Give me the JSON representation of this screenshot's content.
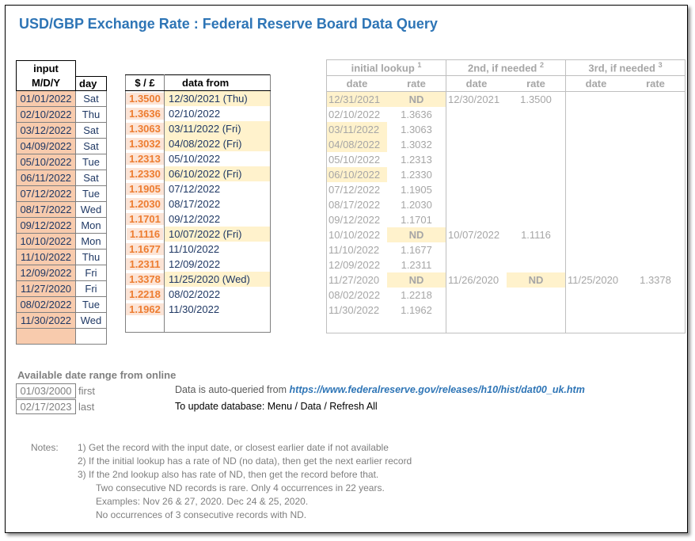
{
  "title": "USD/GBP Exchange Rate : Federal Reserve Board Data Query",
  "input_table": {
    "header_input": "input",
    "header_mdy": "M/D/Y",
    "header_day": "day",
    "rows": [
      {
        "date": "01/01/2022",
        "day": "Sat"
      },
      {
        "date": "02/10/2022",
        "day": "Thu"
      },
      {
        "date": "03/12/2022",
        "day": "Sat"
      },
      {
        "date": "04/09/2022",
        "day": "Sat"
      },
      {
        "date": "05/10/2022",
        "day": "Tue"
      },
      {
        "date": "06/11/2022",
        "day": "Sat"
      },
      {
        "date": "07/12/2022",
        "day": "Tue"
      },
      {
        "date": "08/17/2022",
        "day": "Wed"
      },
      {
        "date": "09/12/2022",
        "day": "Mon"
      },
      {
        "date": "10/10/2022",
        "day": "Mon"
      },
      {
        "date": "11/10/2022",
        "day": "Thu"
      },
      {
        "date": "12/09/2022",
        "day": "Fri"
      },
      {
        "date": "11/27/2020",
        "day": "Fri"
      },
      {
        "date": "08/02/2022",
        "day": "Tue"
      },
      {
        "date": "11/30/2022",
        "day": "Wed"
      }
    ]
  },
  "rate_table": {
    "header_rate": "$ / £",
    "header_from": "data from",
    "rows": [
      {
        "rate": "1.3500",
        "from": "12/30/2021 (Thu)",
        "hl": true
      },
      {
        "rate": "1.3636",
        "from": "02/10/2022",
        "hl": false
      },
      {
        "rate": "1.3063",
        "from": "03/11/2022 (Fri)",
        "hl": true
      },
      {
        "rate": "1.3032",
        "from": "04/08/2022 (Fri)",
        "hl": true
      },
      {
        "rate": "1.2313",
        "from": "05/10/2022",
        "hl": false
      },
      {
        "rate": "1.2330",
        "from": "06/10/2022 (Fri)",
        "hl": true
      },
      {
        "rate": "1.1905",
        "from": "07/12/2022",
        "hl": false
      },
      {
        "rate": "1.2030",
        "from": "08/17/2022",
        "hl": false
      },
      {
        "rate": "1.1701",
        "from": "09/12/2022",
        "hl": false
      },
      {
        "rate": "1.1116",
        "from": "10/07/2022 (Fri)",
        "hl": true
      },
      {
        "rate": "1.1677",
        "from": "11/10/2022",
        "hl": false
      },
      {
        "rate": "1.2311",
        "from": "12/09/2022",
        "hl": false
      },
      {
        "rate": "1.3378",
        "from": "11/25/2020 (Wed)",
        "hl": true
      },
      {
        "rate": "1.2218",
        "from": "08/02/2022",
        "hl": false
      },
      {
        "rate": "1.1962",
        "from": "11/30/2022",
        "hl": false
      }
    ]
  },
  "lookup_table": {
    "h_initial": "initial lookup",
    "h_initial_sup": "1",
    "h_second": "2nd, if needed",
    "h_second_sup": "2",
    "h_third": "3rd, if needed",
    "h_third_sup": "3",
    "h_date": "date",
    "h_rate": "rate",
    "rows": [
      {
        "d1": "12/31/2021",
        "r1": "ND",
        "d2": "12/30/2021",
        "r2": "1.3500",
        "d3": "",
        "r3": ""
      },
      {
        "d1": "02/10/2022",
        "r1": "1.3636",
        "d2": "",
        "r2": "",
        "d3": "",
        "r3": ""
      },
      {
        "d1": "03/11/2022",
        "r1": "1.3063",
        "d2": "",
        "r2": "",
        "d3": "",
        "r3": ""
      },
      {
        "d1": "04/08/2022",
        "r1": "1.3032",
        "d2": "",
        "r2": "",
        "d3": "",
        "r3": ""
      },
      {
        "d1": "05/10/2022",
        "r1": "1.2313",
        "d2": "",
        "r2": "",
        "d3": "",
        "r3": ""
      },
      {
        "d1": "06/10/2022",
        "r1": "1.2330",
        "d2": "",
        "r2": "",
        "d3": "",
        "r3": ""
      },
      {
        "d1": "07/12/2022",
        "r1": "1.1905",
        "d2": "",
        "r2": "",
        "d3": "",
        "r3": ""
      },
      {
        "d1": "08/17/2022",
        "r1": "1.2030",
        "d2": "",
        "r2": "",
        "d3": "",
        "r3": ""
      },
      {
        "d1": "09/12/2022",
        "r1": "1.1701",
        "d2": "",
        "r2": "",
        "d3": "",
        "r3": ""
      },
      {
        "d1": "10/10/2022",
        "r1": "ND",
        "d2": "10/07/2022",
        "r2": "1.1116",
        "d3": "",
        "r3": ""
      },
      {
        "d1": "11/10/2022",
        "r1": "1.1677",
        "d2": "",
        "r2": "",
        "d3": "",
        "r3": ""
      },
      {
        "d1": "12/09/2022",
        "r1": "1.2311",
        "d2": "",
        "r2": "",
        "d3": "",
        "r3": ""
      },
      {
        "d1": "11/27/2020",
        "r1": "ND",
        "d2": "11/26/2020",
        "r2": "ND",
        "d3": "11/25/2020",
        "r3": "1.3378"
      },
      {
        "d1": "08/02/2022",
        "r1": "1.2218",
        "d2": "",
        "r2": "",
        "d3": "",
        "r3": ""
      },
      {
        "d1": "11/30/2022",
        "r1": "1.1962",
        "d2": "",
        "r2": "",
        "d3": "",
        "r3": ""
      }
    ],
    "highlighted_rows": [
      0,
      2,
      3,
      5
    ]
  },
  "available": {
    "title": "Available date range from online",
    "first_date": "01/03/2000",
    "first_label": "first",
    "last_date": "02/17/2023",
    "last_label": "last"
  },
  "info": {
    "auto_query_text": "Data is auto-queried from ",
    "url": "https://www.federalreserve.gov/releases/h10/hist/dat00_uk.htm",
    "update_text": "To update database:  Menu / Data / Refresh All"
  },
  "notes": {
    "label": "Notes:",
    "lines": [
      "1) Get the record with the input date, or closest earlier date if not available",
      "2) If the initial lookup has a rate of ND (no data), then get the next earlier record",
      "3) If the 2nd lookup also has rate of ND, then get the record before that.",
      "Two consecutive ND records is rare.  Only 4 occurrences in 22 years.",
      "Examples:  Nov 26 & 27, 2020.  Dec 24 & 25, 2020.",
      "No occurrences of 3 consecutive records with ND."
    ]
  },
  "colors": {
    "title": "#2e75b6",
    "input_date_bg": "#f8cbad",
    "rate_text": "#ed7d31",
    "highlight_bg": "#fff2cc"
  }
}
